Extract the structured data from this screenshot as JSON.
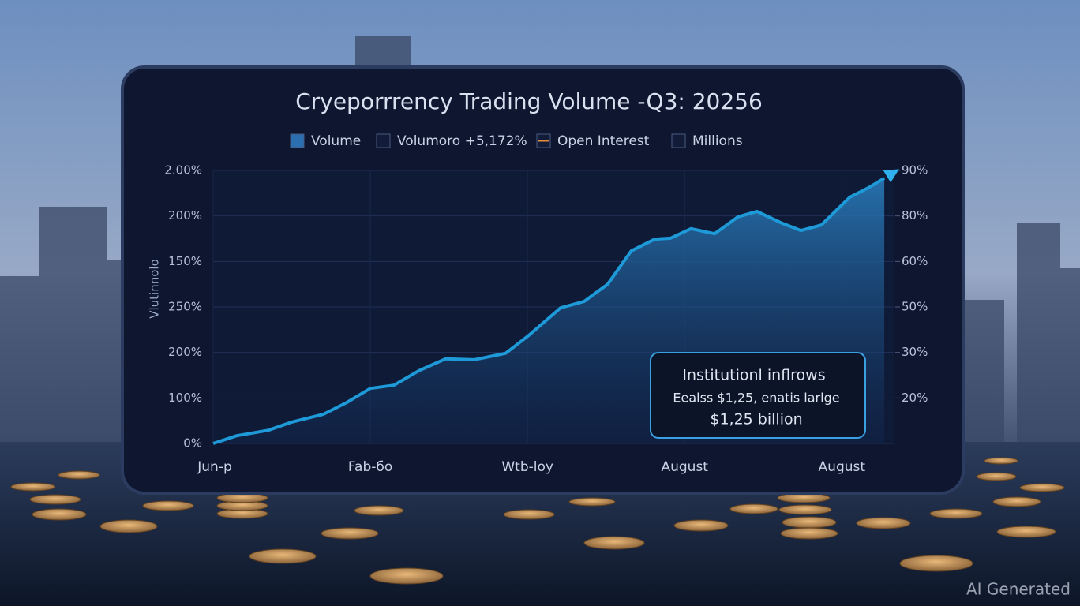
{
  "chart_data": {
    "type": "area",
    "title": "Cryeporrrency Trading Volume -Q3: 20256",
    "y_label": "Vlutinnolo",
    "legend_items": [
      {
        "label": "Volume",
        "color": "#2c6fb0"
      },
      {
        "label": "Volumoro +5,172%",
        "color": "#121c38"
      },
      {
        "label": "Open Interest",
        "color": "#e08a3c"
      },
      {
        "label": "Millions",
        "color": "#121c38"
      }
    ],
    "xlim": [
      0,
      4.33
    ],
    "xticks": [
      {
        "value": 0,
        "label": "Jun-p"
      },
      {
        "value": 1,
        "label": "Fab-бo"
      },
      {
        "value": 2,
        "label": "Wtb-loy"
      },
      {
        "value": 3,
        "label": "August"
      },
      {
        "value": 4,
        "label": "August"
      }
    ],
    "ylim": [
      0,
      6
    ],
    "yticks": [
      {
        "value": 0,
        "label": "0%"
      },
      {
        "value": 1,
        "label": "100%"
      },
      {
        "value": 2,
        "label": "200%"
      },
      {
        "value": 3,
        "label": "250%"
      },
      {
        "value": 4,
        "label": "150%"
      },
      {
        "value": 5,
        "label": "200%"
      },
      {
        "value": 6,
        "label": "2.00%"
      }
    ],
    "y2lim": [
      0,
      6
    ],
    "y2ticks": [
      {
        "value": 1,
        "label": "20%"
      },
      {
        "value": 2,
        "label": "30%"
      },
      {
        "value": 3,
        "label": "50%"
      },
      {
        "value": 4,
        "label": "60%"
      },
      {
        "value": 5,
        "label": "80%"
      },
      {
        "value": 6,
        "label": "90%"
      }
    ],
    "grid": true,
    "x": [
      0,
      0.15,
      0.35,
      0.5,
      0.7,
      0.85,
      1.0,
      1.15,
      1.31,
      1.48,
      1.66,
      1.86,
      2.01,
      2.21,
      2.36,
      2.51,
      2.66,
      2.81,
      2.91,
      3.04,
      3.19,
      3.34,
      3.46,
      3.62,
      3.74,
      3.87,
      4.05,
      4.17,
      4.27
    ],
    "series": [
      {
        "name": "Volume",
        "color": "#1e9ad8",
        "values": [
          0,
          0.17,
          0.29,
          0.47,
          0.64,
          0.9,
          1.21,
          1.28,
          1.6,
          1.86,
          1.84,
          1.98,
          2.38,
          2.98,
          3.12,
          3.5,
          4.23,
          4.49,
          4.51,
          4.72,
          4.61,
          4.98,
          5.1,
          4.84,
          4.68,
          4.8,
          5.41,
          5.62,
          5.83
        ]
      }
    ],
    "annotation": {
      "title": "Institutionl inflrows",
      "lines": [
        "Eealss $1,25, enatis larlge",
        "$1,25 billion"
      ]
    }
  },
  "watermark": "AI Generated"
}
